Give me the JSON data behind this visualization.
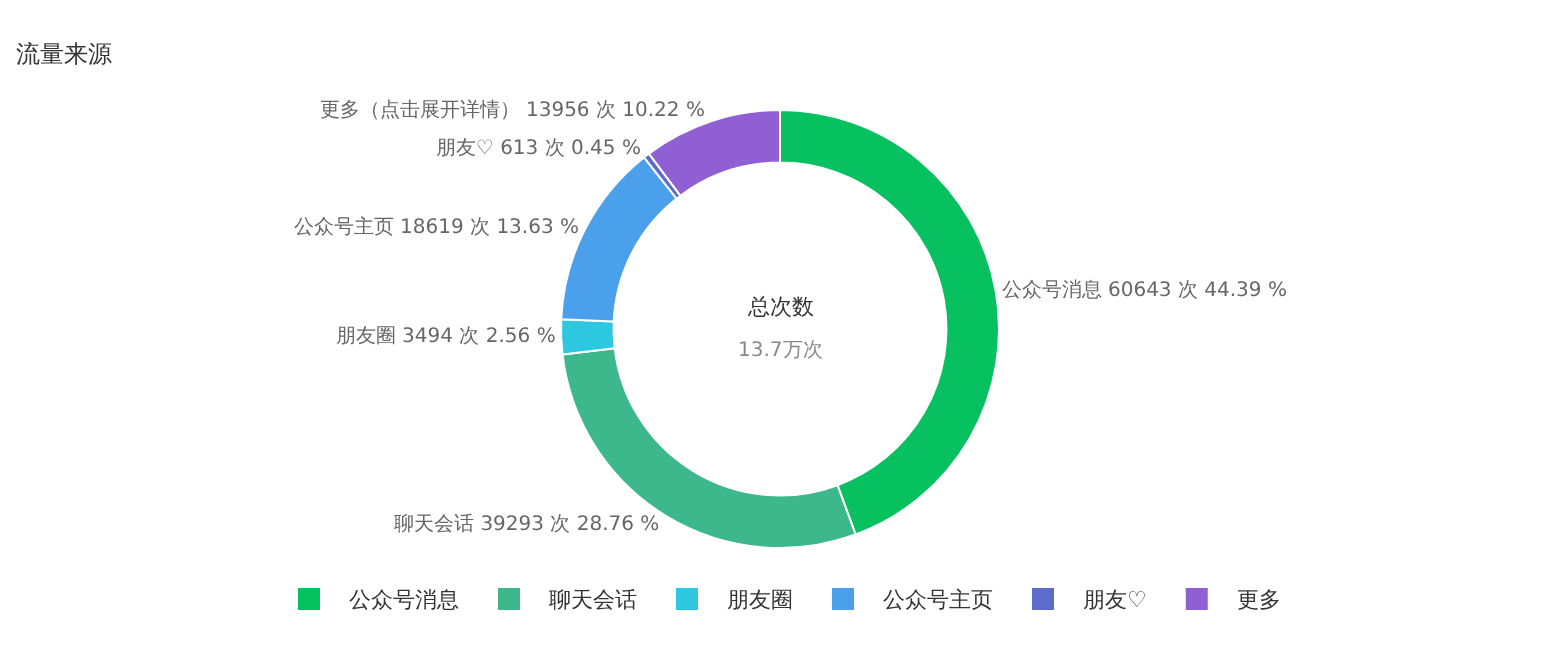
{
  "chart_data": {
    "type": "donut",
    "title": "流量来源",
    "categories": [
      "公众号消息",
      "聊天会话",
      "朋友圈",
      "公众号主页",
      "朋友♡",
      "更多"
    ],
    "values": [
      60643,
      39293,
      3494,
      18619,
      613,
      13956
    ],
    "colors": [
      "#07c160",
      "#3cb88c",
      "#2ec7e0",
      "#4aa0ea",
      "#5b6ccc",
      "#8f5fd3"
    ],
    "value_labels": [
      "公众号消息 60643 次 44.39 %",
      "聊天会话 39293 次 28.76 %",
      "朋友圈 3494 次 2.56 %",
      "公众号主页 18619 次 13.63 %",
      "朋友♡ 613 次 0.45 %",
      "更多（点击展开详情） 13956 次 10.22 %"
    ],
    "annotations": [
      "总次数",
      "13.7万次"
    ],
    "legend": "bottom"
  }
}
